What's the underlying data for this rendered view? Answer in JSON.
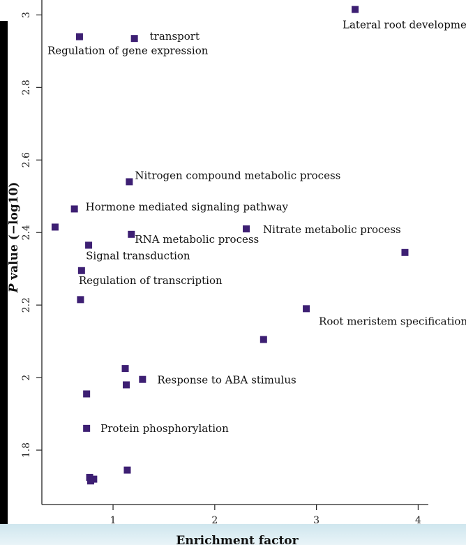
{
  "chart_data": {
    "type": "scatter",
    "xlabel": "Enrichment factor",
    "ylabel_symbol": "P",
    "ylabel_rest": " value (−log10)",
    "xlim": [
      0.3,
      4.1
    ],
    "ylim": [
      1.65,
      3.07
    ],
    "xticks": [
      1,
      2,
      3,
      4
    ],
    "yticks": [
      1.8,
      2,
      2.2,
      2.4,
      2.6,
      2.8,
      3
    ],
    "ytick_labels": [
      "1.8",
      "2",
      "2.2",
      "2.4",
      "2.6",
      "2.8",
      "3"
    ],
    "marker_color": "#3d1f73",
    "points": [
      {
        "x": 3.38,
        "y": 3.015,
        "label": "Lateral root development"
      },
      {
        "x": 0.67,
        "y": 2.94,
        "label": "Regulation of gene expression"
      },
      {
        "x": 1.21,
        "y": 2.935,
        "label": "transport"
      },
      {
        "x": 1.16,
        "y": 2.54,
        "label": "Nitrogen compound metabolic process"
      },
      {
        "x": 0.62,
        "y": 2.465,
        "label": "Hormone mediated signaling pathway"
      },
      {
        "x": 0.43,
        "y": 2.415,
        "label": ""
      },
      {
        "x": 2.31,
        "y": 2.41,
        "label": "Nitrate metabolic process"
      },
      {
        "x": 1.18,
        "y": 2.395,
        "label": "RNA metabolic process"
      },
      {
        "x": 0.76,
        "y": 2.365,
        "label": "Signal transduction"
      },
      {
        "x": 3.87,
        "y": 2.345,
        "label": ""
      },
      {
        "x": 0.69,
        "y": 2.295,
        "label": "Regulation of transcription"
      },
      {
        "x": 0.68,
        "y": 2.215,
        "label": ""
      },
      {
        "x": 2.9,
        "y": 2.19,
        "label": "Root meristem specification"
      },
      {
        "x": 2.48,
        "y": 2.105,
        "label": ""
      },
      {
        "x": 1.12,
        "y": 2.025,
        "label": ""
      },
      {
        "x": 1.29,
        "y": 1.995,
        "label": "Response to ABA stimulus"
      },
      {
        "x": 1.13,
        "y": 1.98,
        "label": ""
      },
      {
        "x": 0.74,
        "y": 1.955,
        "label": ""
      },
      {
        "x": 0.74,
        "y": 1.86,
        "label": "Protein phosphorylation"
      },
      {
        "x": 1.14,
        "y": 1.745,
        "label": ""
      },
      {
        "x": 0.77,
        "y": 1.725,
        "label": ""
      },
      {
        "x": 0.81,
        "y": 1.72,
        "label": ""
      },
      {
        "x": 0.78,
        "y": 1.715,
        "label": ""
      }
    ]
  }
}
